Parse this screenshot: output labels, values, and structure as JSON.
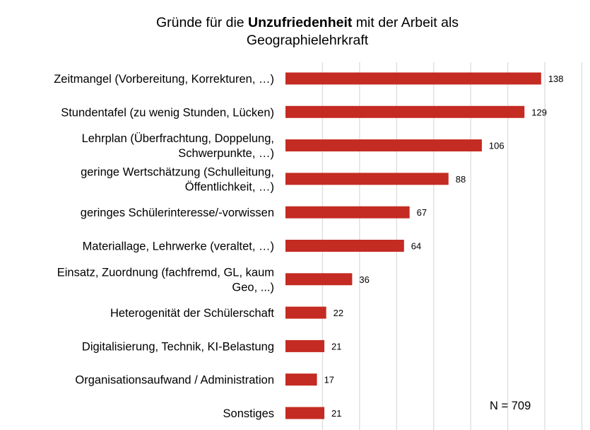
{
  "chart_data": {
    "type": "bar",
    "orientation": "horizontal",
    "title_parts": [
      {
        "text": "Gründe für die ",
        "bold": false
      },
      {
        "text": "Unzufriedenheit",
        "bold": true
      },
      {
        "text": " mit der Arbeit als",
        "bold": false
      }
    ],
    "title_line2": "Geographielehrkraft",
    "categories": [
      [
        "Zeitmangel (Vorbereitung, Korrekturen, …)"
      ],
      [
        "Stundentafel (zu wenig Stunden, Lücken)"
      ],
      [
        "Lehrplan (Überfrachtung, Doppelung,",
        "Schwerpunkte, …)"
      ],
      [
        "geringe Wertschätzung (Schulleitung,",
        "Öffentlichkeit, …)"
      ],
      [
        "geringes Schülerinteresse/-vorwissen"
      ],
      [
        "Materiallage, Lehrwerke (veraltet, …)"
      ],
      [
        "Einsatz, Zuordnung (fachfremd, GL, kaum",
        "Geo, ...)"
      ],
      [
        "Heterogenität der Schülerschaft"
      ],
      [
        "Digitalisierung, Technik, KI-Belastung"
      ],
      [
        "Organisationsaufwand / Administration"
      ],
      [
        "Sonstiges"
      ]
    ],
    "values": [
      138,
      129,
      106,
      88,
      67,
      64,
      36,
      22,
      21,
      17,
      21
    ],
    "xlim": [
      0,
      160
    ],
    "grid_step": 20,
    "grid": true,
    "tick_labels_shown": false,
    "bar_color": "#C42B22",
    "grid_color": "#DCDCDC",
    "annotation": "N = 709"
  }
}
